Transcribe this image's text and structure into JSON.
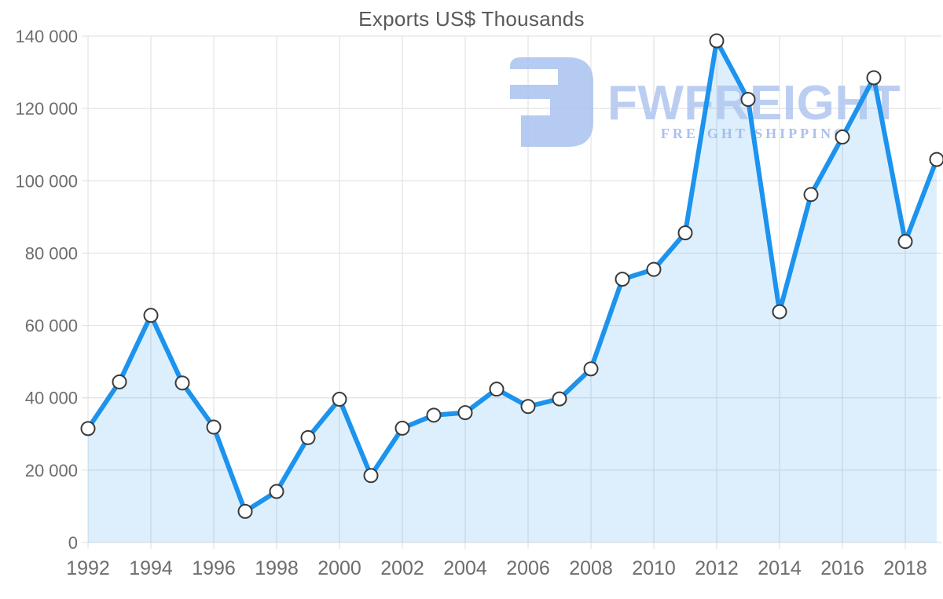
{
  "chart_data": {
    "type": "area",
    "title": "Exports US$ Thousands",
    "xlabel": "",
    "ylabel": "",
    "x": [
      1992,
      1993,
      1994,
      1995,
      1996,
      1997,
      1998,
      1999,
      2000,
      2001,
      2002,
      2003,
      2004,
      2005,
      2006,
      2007,
      2008,
      2009,
      2010,
      2011,
      2012,
      2013,
      2014,
      2015,
      2016,
      2017,
      2018,
      2019
    ],
    "values": [
      31500,
      44400,
      62800,
      44100,
      31900,
      8600,
      14100,
      29000,
      39600,
      18500,
      31600,
      35200,
      35900,
      42400,
      37600,
      39700,
      48000,
      72800,
      75500,
      85600,
      138700,
      122500,
      63800,
      96200,
      112100,
      128500,
      83200,
      105900
    ],
    "ylim": [
      0,
      140000
    ],
    "yticks": [
      0,
      20000,
      40000,
      60000,
      80000,
      100000,
      120000,
      140000
    ],
    "ytick_labels": [
      "0",
      "20 000",
      "40 000",
      "60 000",
      "80 000",
      "100 000",
      "120 000",
      "140 000"
    ],
    "xticks": [
      1992,
      1994,
      1996,
      1998,
      2000,
      2002,
      2004,
      2006,
      2008,
      2010,
      2012,
      2014,
      2016,
      2018
    ],
    "xtick_labels": [
      "1992",
      "1994",
      "1996",
      "1998",
      "2000",
      "2002",
      "2004",
      "2006",
      "2008",
      "2010",
      "2012",
      "2014",
      "2016",
      "2018"
    ],
    "grid": true,
    "legend_position": "none",
    "marker": "circle"
  },
  "watermark": {
    "brand": "FWFREIGHT",
    "tagline": "FREIGHT SHIPPING"
  },
  "colors": {
    "background": "#ffffff",
    "line": "#1c93ee",
    "fill": "rgba(30,147,238,0.15)",
    "marker_fill": "#ffffff",
    "marker_stroke": "#3a3a3a",
    "grid": "#e3e3e3",
    "axis_text": "#6d6d6d",
    "title_text": "#58595b",
    "watermark_icon": "#a9c2ef",
    "watermark_text": "#b0c6f0",
    "watermark_tagline": "#9cb6ea"
  }
}
